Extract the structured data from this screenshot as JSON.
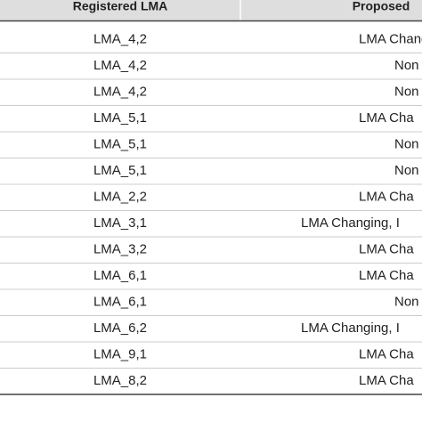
{
  "table": {
    "header": [
      "Registered LMA",
      "Proposed"
    ],
    "rows": [
      [
        "LMA_4,2",
        "LMA Chang"
      ],
      [
        "LMA_4,2",
        "Non"
      ],
      [
        "LMA_4,2",
        "Non"
      ],
      [
        "LMA_5,1",
        "LMA Cha"
      ],
      [
        "LMA_5,1",
        "Non"
      ],
      [
        "LMA_5,1",
        "Non"
      ],
      [
        "LMA_2,2",
        "LMA Cha"
      ],
      [
        "LMA_3,1",
        "LMA Changing, I"
      ],
      [
        "LMA_3,2",
        "LMA Cha"
      ],
      [
        "LMA_6,1",
        "LMA Cha"
      ],
      [
        "LMA_6,1",
        "Non"
      ],
      [
        "LMA_6,2",
        "LMA Changing, I"
      ],
      [
        "LMA_9,1",
        "LMA Cha"
      ],
      [
        "LMA_8,2",
        "LMA Cha"
      ]
    ]
  }
}
